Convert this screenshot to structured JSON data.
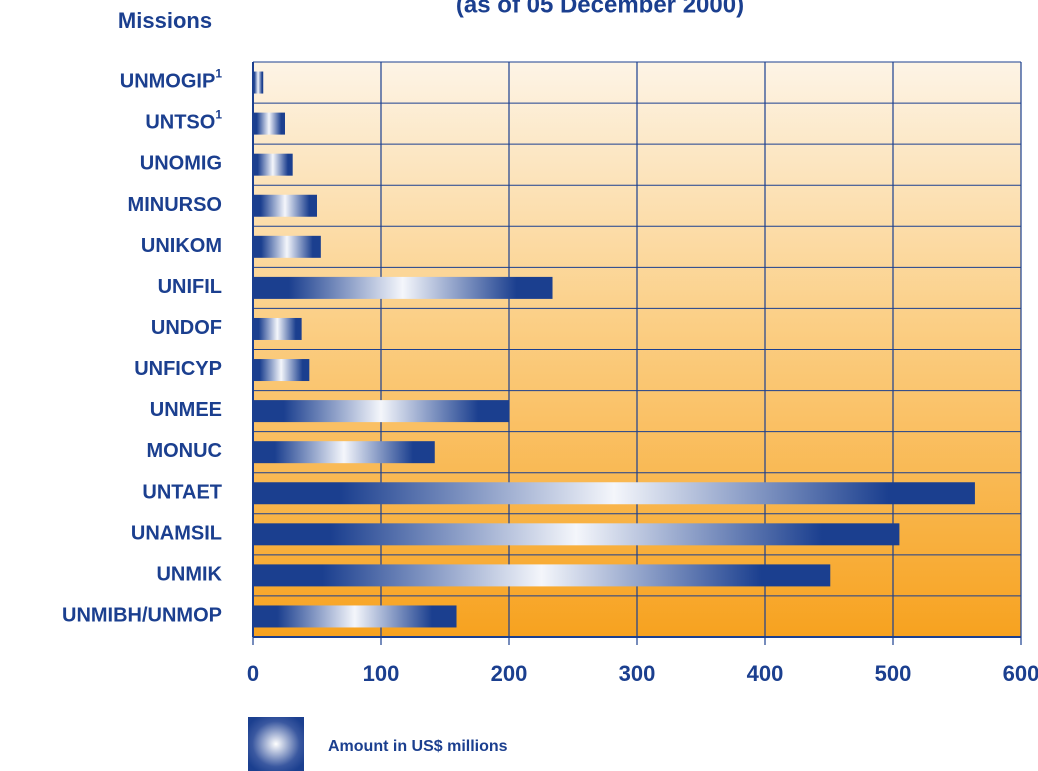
{
  "chart_data": {
    "type": "hbar",
    "title": "(as of 05 December 2000)",
    "y_label": "Missions",
    "categories": [
      "UNMOGIP",
      "UNTSO",
      "UNOMIG",
      "MINURSO",
      "UNIKOM",
      "UNIFIL",
      "UNDOF",
      "UNFICYP",
      "UNMEE",
      "MONUC",
      "UNTAET",
      "UNAMSIL",
      "UNMIK",
      "UNMIBH/UNMOP"
    ],
    "category_superscripts": [
      "1",
      "1",
      null,
      null,
      null,
      null,
      null,
      null,
      null,
      null,
      null,
      null,
      null,
      null
    ],
    "series": [
      {
        "name": "Amount  in US$ millions",
        "color": "#1b3f8f",
        "values": [
          8,
          25,
          31,
          50,
          53,
          234,
          38,
          44,
          200,
          142,
          564,
          505,
          451,
          159
        ]
      }
    ],
    "xlim": [
      0,
      600
    ],
    "xticks": [
      0,
      100,
      200,
      300,
      400,
      500,
      600
    ],
    "grid": true,
    "legend": "bottom-left"
  }
}
